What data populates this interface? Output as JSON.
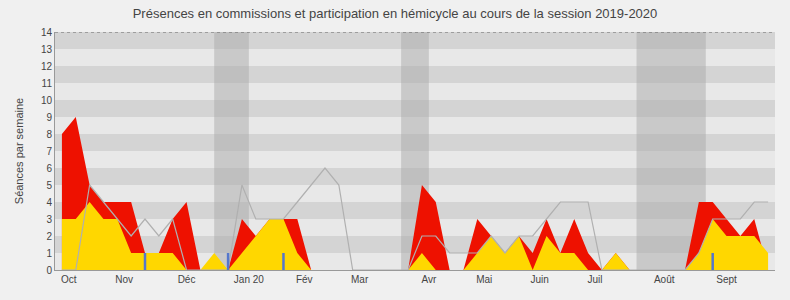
{
  "chart_data": {
    "type": "area",
    "title": "Présences en commissions et participation en hémicycle au cours de la session 2019-2020",
    "ylabel": "Séances par semaine",
    "x": [
      0,
      1,
      2,
      3,
      4,
      5,
      6,
      7,
      8,
      9,
      10,
      11,
      12,
      13,
      14,
      15,
      16,
      17,
      18,
      19,
      20,
      21,
      22,
      23,
      24,
      25,
      26,
      27,
      28,
      29,
      30,
      31,
      32,
      33,
      34,
      35,
      36,
      37,
      38,
      39,
      40,
      41,
      42,
      43,
      44,
      45,
      46,
      47,
      48,
      49,
      50,
      51
    ],
    "xlim": [
      -0.5,
      51.5
    ],
    "xticks": [
      {
        "value": 0.5,
        "label": "Oct"
      },
      {
        "value": 4.5,
        "label": "Nov"
      },
      {
        "value": 9.0,
        "label": "Déc"
      },
      {
        "value": 13.5,
        "label": "Jan 20"
      },
      {
        "value": 17.5,
        "label": "Fév"
      },
      {
        "value": 21.5,
        "label": "Mar"
      },
      {
        "value": 26.5,
        "label": "Avr"
      },
      {
        "value": 30.5,
        "label": "Mai"
      },
      {
        "value": 34.5,
        "label": "Juin"
      },
      {
        "value": 38.5,
        "label": "Juil"
      },
      {
        "value": 43.5,
        "label": "Août"
      },
      {
        "value": 48.0,
        "label": "Sept"
      }
    ],
    "ylim": [
      0,
      14
    ],
    "yticks": [
      0,
      1,
      2,
      3,
      4,
      5,
      6,
      7,
      8,
      9,
      10,
      11,
      12,
      13,
      14
    ],
    "grid": false,
    "background": "#f0f0f0",
    "stripes": {
      "colors": [
        "#e8e8e8",
        "#d4d4d4"
      ]
    },
    "bands": [
      {
        "xstart": 11.0,
        "xend": 13.5,
        "color": "#aaaaaa"
      },
      {
        "xstart": 24.5,
        "xend": 26.5,
        "color": "#aaaaaa"
      },
      {
        "xstart": 41.5,
        "xend": 46.5,
        "color": "#aaaaaa"
      }
    ],
    "vlines": {
      "color": "#5577CC",
      "x": [
        6,
        12,
        16,
        47
      ]
    },
    "series": [
      {
        "type": "area",
        "color": "#EE1100",
        "values": [
          8,
          9,
          5,
          4,
          4,
          4,
          1,
          1,
          3,
          4,
          0,
          0,
          0,
          3,
          2,
          3,
          3,
          3,
          0,
          0,
          0,
          0,
          0,
          0,
          0,
          0,
          5,
          4,
          0,
          0,
          3,
          2,
          1,
          2,
          1,
          3,
          1,
          3,
          1,
          0,
          1,
          0,
          0,
          0,
          0,
          0,
          4,
          4,
          3,
          2,
          3,
          0
        ]
      },
      {
        "type": "area",
        "color": "#FFD700",
        "values": [
          3,
          3,
          4,
          3,
          3,
          1,
          1,
          1,
          1,
          0,
          0,
          1,
          0,
          1,
          2,
          3,
          3,
          1,
          0,
          0,
          0,
          0,
          0,
          0,
          0,
          0,
          1,
          0,
          0,
          0,
          1,
          2,
          1,
          2,
          0,
          2,
          1,
          1,
          0,
          0,
          1,
          0,
          0,
          0,
          0,
          0,
          1,
          3,
          2,
          2,
          2,
          1
        ]
      },
      {
        "type": "line",
        "color": "#b0b0b0",
        "values": [
          0,
          0,
          5,
          4,
          3,
          2,
          3,
          2,
          3,
          0,
          0,
          0,
          0,
          5,
          3,
          3,
          3,
          4,
          5,
          6,
          5,
          0,
          0,
          0,
          0,
          0,
          2,
          2,
          1,
          1,
          1,
          2,
          1,
          2,
          2,
          3,
          4,
          4,
          4,
          0,
          0,
          0,
          0,
          0,
          0,
          0,
          1,
          3,
          3,
          3,
          4,
          4
        ]
      }
    ]
  }
}
